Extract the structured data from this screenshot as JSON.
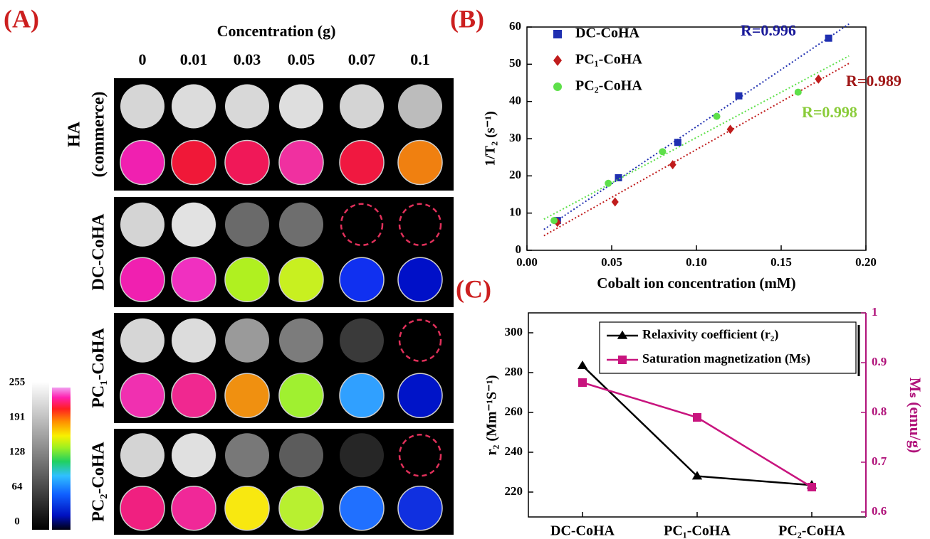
{
  "panel_a": {
    "label": "(A)",
    "title": "Concentration (g)",
    "columns": [
      "0",
      "0.01",
      "0.03",
      "0.05",
      "0.07",
      "0.1"
    ],
    "rows": [
      {
        "label_lines": [
          "HA",
          "(commerce)"
        ]
      },
      {
        "label_lines": [
          "DC-CoHA"
        ]
      },
      {
        "label_lines": [
          "PC₁-CoHA"
        ]
      },
      {
        "label_lines": [
          "PC₂-CoHA"
        ]
      }
    ],
    "colorbar_ticks": [
      255,
      191,
      128,
      64,
      0
    ]
  },
  "chart_data": [
    {
      "type": "scatter",
      "label": "(B)",
      "xlabel": "Cobalt ion concentration (mM)",
      "ylabel": "1/T₂ (s⁻¹)",
      "xlim": [
        0,
        0.2
      ],
      "xticks": [
        {
          "value": 0,
          "label": "0.00"
        },
        {
          "value": 0.05,
          "label": "0.05"
        },
        {
          "value": 0.1,
          "label": "0.10"
        },
        {
          "value": 0.15,
          "label": "0.15"
        },
        {
          "value": 0.2,
          "label": "0.20"
        }
      ],
      "ylim": [
        0,
        60
      ],
      "yticks": [
        0,
        10,
        20,
        30,
        40,
        50,
        60
      ],
      "legend": "upper left",
      "fit_lines": true,
      "series": [
        {
          "name": "DC-CoHA",
          "color": "#1f2fb0",
          "marker": "square",
          "x": [
            0.018,
            0.054,
            0.089,
            0.125,
            0.178
          ],
          "values": [
            8,
            19.5,
            29,
            41.5,
            57
          ]
        },
        {
          "name": "PC₁-CoHA",
          "color": "#c01c1c",
          "marker": "diamond",
          "x": [
            0.018,
            0.052,
            0.086,
            0.12,
            0.172
          ],
          "values": [
            7.5,
            13,
            23,
            32.5,
            46
          ]
        },
        {
          "name": "PC₂-CoHA",
          "color": "#5ee04a",
          "marker": "circle",
          "x": [
            0.016,
            0.048,
            0.08,
            0.112,
            0.16
          ],
          "values": [
            8,
            18,
            26.5,
            36,
            42.5
          ]
        }
      ],
      "annotations": [
        {
          "text": "R=0.996",
          "color": "#1a1a9a"
        },
        {
          "text": "R=0.989",
          "color": "#a01818"
        },
        {
          "text": "R=0.998",
          "color": "#8acc3a"
        }
      ]
    },
    {
      "type": "line",
      "label": "(C)",
      "ylabel": "r₂ (Mm⁻¹S⁻¹)",
      "y2label": "Mₛ (emu/g)",
      "categories": [
        "DC-CoHA",
        "PC₁-CoHA",
        "PC₂-CoHA"
      ],
      "ylim": [
        207.5,
        310
      ],
      "yticks": [
        220,
        240,
        260,
        280,
        300
      ],
      "y2lim": [
        0.59,
        1.0
      ],
      "y2ticks": [
        0.6,
        0.7,
        0.8,
        0.9,
        1.0
      ],
      "y2color": "#b0127a",
      "legend": "upper right",
      "series": [
        {
          "name": "Relaxivity coefficient (r₂)",
          "color": "#000000",
          "marker": "triangle",
          "values": [
            283.5,
            228,
            223.5
          ]
        },
        {
          "name": "Saturation magnetization (Ms)",
          "color": "#c8147e",
          "marker": "square",
          "axis": "y2",
          "values": [
            0.86,
            0.79,
            0.65
          ]
        }
      ]
    }
  ]
}
